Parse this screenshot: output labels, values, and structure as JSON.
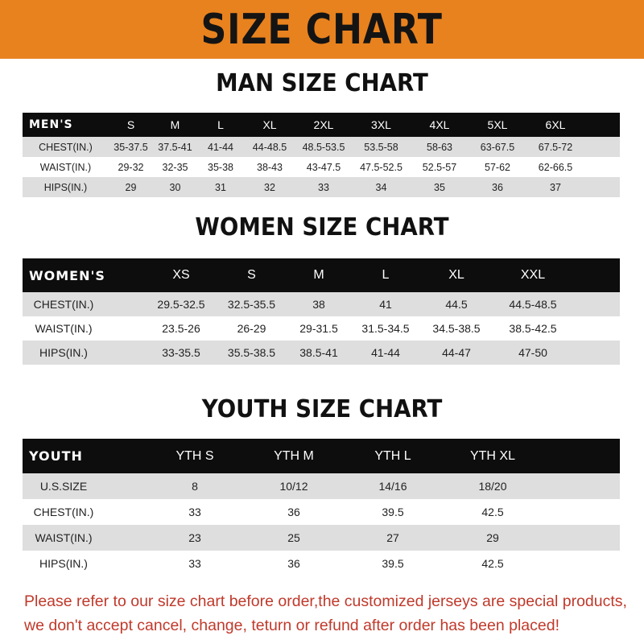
{
  "banner": {
    "title": "SIZE CHART",
    "color": "#e8821e"
  },
  "men": {
    "title": "MAN SIZE CHART",
    "header": "MEN'S",
    "sizes": [
      "S",
      "M",
      "L",
      "XL",
      "2XL",
      "3XL",
      "4XL",
      "5XL",
      "6XL"
    ],
    "rows": [
      {
        "label": "CHEST(IN.)",
        "values": [
          "35-37.5",
          "37.5-41",
          "41-44",
          "44-48.5",
          "48.5-53.5",
          "53.5-58",
          "58-63",
          "63-67.5",
          "67.5-72"
        ]
      },
      {
        "label": "WAIST(IN.)",
        "values": [
          "29-32",
          "32-35",
          "35-38",
          "38-43",
          "43-47.5",
          "47.5-52.5",
          "52.5-57",
          "57-62",
          "62-66.5"
        ]
      },
      {
        "label": "HIPS(IN.)",
        "values": [
          "29",
          "30",
          "31",
          "32",
          "33",
          "34",
          "35",
          "36",
          "37"
        ]
      }
    ]
  },
  "women": {
    "title": "WOMEN SIZE CHART",
    "header": "WOMEN'S",
    "sizes": [
      "XS",
      "S",
      "M",
      "L",
      "XL",
      "XXL"
    ],
    "rows": [
      {
        "label": "CHEST(IN.)",
        "values": [
          "29.5-32.5",
          "32.5-35.5",
          "38",
          "41",
          "44.5",
          "44.5-48.5"
        ]
      },
      {
        "label": "WAIST(IN.)",
        "values": [
          "23.5-26",
          "26-29",
          "29-31.5",
          "31.5-34.5",
          "34.5-38.5",
          "38.5-42.5"
        ]
      },
      {
        "label": "HIPS(IN.)",
        "values": [
          "33-35.5",
          "35.5-38.5",
          "38.5-41",
          "41-44",
          "44-47",
          "47-50"
        ]
      }
    ]
  },
  "youth": {
    "title": "YOUTH SIZE CHART",
    "header": "YOUTH",
    "sizes": [
      "YTH S",
      "YTH M",
      "YTH L",
      "YTH XL"
    ],
    "rows": [
      {
        "label": "U.S.SIZE",
        "values": [
          "8",
          "10/12",
          "14/16",
          "18/20"
        ]
      },
      {
        "label": "CHEST(IN.)",
        "values": [
          "33",
          "36",
          "39.5",
          "42.5"
        ]
      },
      {
        "label": "WAIST(IN.)",
        "values": [
          "23",
          "25",
          "27",
          "29"
        ]
      },
      {
        "label": "HIPS(IN.)",
        "values": [
          "33",
          "36",
          "39.5",
          "42.5"
        ]
      }
    ]
  },
  "notice": {
    "line1": "Please refer to our size chart before order,the customized jerseys are special products,",
    "line2": "we don't accept cancel, change, teturn or refund after order has been placed!",
    "color": "#c0392b"
  }
}
